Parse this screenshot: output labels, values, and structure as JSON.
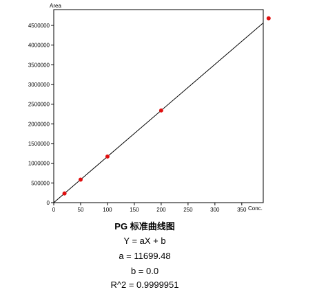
{
  "chart_data": {
    "type": "scatter",
    "title": "PG 标准曲线图",
    "xlabel": "Conc.",
    "ylabel": "Area",
    "xlim": [
      0,
      390
    ],
    "ylim": [
      0,
      4900000
    ],
    "x_ticks": [
      {
        "value": 0,
        "label": "0"
      },
      {
        "value": 50,
        "label": "50"
      },
      {
        "value": 100,
        "label": "100"
      },
      {
        "value": 150,
        "label": "150"
      },
      {
        "value": 200,
        "label": "200"
      },
      {
        "value": 250,
        "label": "250"
      },
      {
        "value": 300,
        "label": "300"
      },
      {
        "value": 350,
        "label": "350"
      }
    ],
    "y_ticks": [
      {
        "value": 0,
        "label": "0"
      },
      {
        "value": 500000,
        "label": "500000"
      },
      {
        "value": 1000000,
        "label": "1000000"
      },
      {
        "value": 1500000,
        "label": "1500000"
      },
      {
        "value": 2000000,
        "label": "2000000"
      },
      {
        "value": 2500000,
        "label": "2500000"
      },
      {
        "value": 3000000,
        "label": "3000000"
      },
      {
        "value": 3500000,
        "label": "3500000"
      },
      {
        "value": 4000000,
        "label": "4000000"
      },
      {
        "value": 4500000,
        "label": "4500000"
      }
    ],
    "points": [
      {
        "x": 20,
        "y": 233990
      },
      {
        "x": 50,
        "y": 584974
      },
      {
        "x": 100,
        "y": 1169948
      },
      {
        "x": 200,
        "y": 2339896
      },
      {
        "x": 400,
        "y": 4679792
      }
    ],
    "fit": {
      "a": 11699.48,
      "b": 0.0
    },
    "grid": false,
    "point_color": "#e01010",
    "line_color": "#000000"
  },
  "captions": {
    "equation": "Y = aX + b",
    "a_text": "a = 11699.48",
    "b_text": "b = 0.0",
    "r2_text": "R^2 = 0.9999951"
  }
}
